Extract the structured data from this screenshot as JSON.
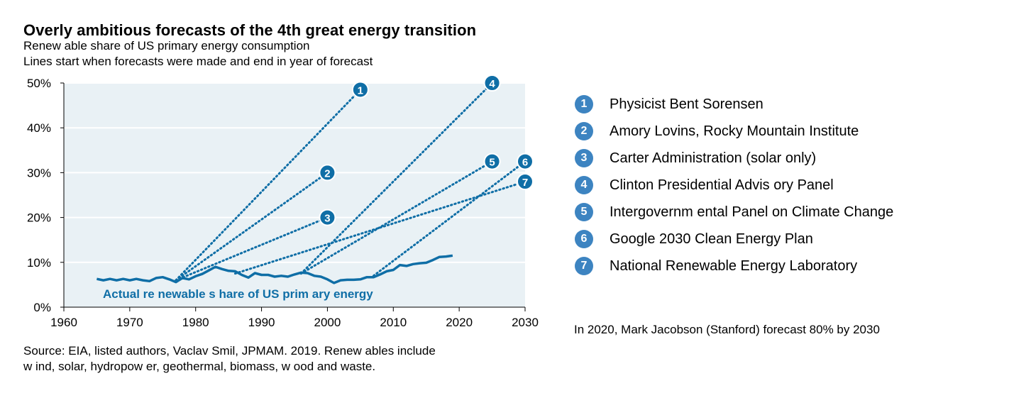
{
  "chart_data": {
    "type": "line",
    "title": "Overly ambitious forecasts  of the 4th  great energy transition",
    "subtitle_lines": [
      "Renew able share of US primary energy consumption",
      "Lines start when forecasts were made and end in year of forecast"
    ],
    "xlim": [
      1960,
      2030
    ],
    "ylim": [
      0,
      50
    ],
    "x_ticks": [
      1960,
      1970,
      1980,
      1990,
      2000,
      2010,
      2020,
      2030
    ],
    "y_ticks": [
      "0%",
      "10%",
      "20%",
      "30%",
      "40%",
      "50%"
    ],
    "y_tick_values": [
      0,
      10,
      20,
      30,
      40,
      50
    ],
    "grid": "horizontal",
    "plot_background": "#e9f1f5",
    "series_color": "#0f6ea6",
    "actual": {
      "label": "Actual re newable s hare of US prim ary energy",
      "x": [
        1965,
        1966,
        1967,
        1968,
        1969,
        1970,
        1971,
        1972,
        1973,
        1974,
        1975,
        1976,
        1977,
        1978,
        1979,
        1980,
        1981,
        1982,
        1983,
        1984,
        1985,
        1986,
        1987,
        1988,
        1989,
        1990,
        1991,
        1992,
        1993,
        1994,
        1995,
        1996,
        1997,
        1998,
        1999,
        2000,
        2001,
        2002,
        2003,
        2004,
        2005,
        2006,
        2007,
        2008,
        2009,
        2010,
        2011,
        2012,
        2013,
        2014,
        2015,
        2016,
        2017,
        2018,
        2019
      ],
      "y": [
        6.3,
        6.0,
        6.3,
        6.0,
        6.3,
        6.0,
        6.3,
        6.0,
        5.8,
        6.5,
        6.7,
        6.2,
        5.6,
        6.5,
        6.2,
        6.9,
        7.4,
        8.2,
        9.0,
        8.5,
        8.1,
        8.0,
        7.2,
        6.6,
        7.6,
        7.2,
        7.2,
        6.8,
        7.0,
        6.8,
        7.3,
        7.7,
        7.6,
        7.0,
        6.8,
        6.2,
        5.4,
        6.0,
        6.1,
        6.1,
        6.2,
        6.7,
        6.7,
        7.3,
        8.0,
        8.3,
        9.4,
        9.2,
        9.6,
        9.8,
        9.9,
        10.5,
        11.2,
        11.3,
        11.5
      ]
    },
    "forecasts": [
      {
        "id": "1",
        "x": [
          1977,
          2005
        ],
        "y": [
          6.0,
          48.5
        ]
      },
      {
        "id": "2",
        "x": [
          1977,
          2000
        ],
        "y": [
          6.0,
          30.0
        ]
      },
      {
        "id": "3",
        "x": [
          1977,
          2000
        ],
        "y": [
          6.0,
          20.0
        ]
      },
      {
        "id": "4",
        "x": [
          1996,
          2025
        ],
        "y": [
          7.5,
          50.0
        ]
      },
      {
        "id": "5",
        "x": [
          1996,
          2025
        ],
        "y": [
          7.5,
          32.5
        ]
      },
      {
        "id": "6",
        "x": [
          2007,
          2030
        ],
        "y": [
          7.0,
          32.5
        ]
      },
      {
        "id": "7",
        "x": [
          1986,
          2030
        ],
        "y": [
          7.5,
          28.0
        ]
      }
    ]
  },
  "legend": [
    {
      "id": "1",
      "label": "Physicist Bent Sorensen"
    },
    {
      "id": "2",
      "label": "Amory Lovins, Rocky Mountain Institute"
    },
    {
      "id": "3",
      "label": "Carter Administration (solar only)"
    },
    {
      "id": "4",
      "label": "Clinton Presidential Advis ory Panel"
    },
    {
      "id": "5",
      "label": "Intergovernm ental Panel on Climate Change"
    },
    {
      "id": "6",
      "label": "Google 2030 Clean Energy Plan"
    },
    {
      "id": "7",
      "label": "National Renewable Energy Laboratory"
    }
  ],
  "badge_color": "#3d84c1",
  "note": "In 2020, Mark Jacobson (Stanford) forecast 80% by 2030",
  "source_lines": [
    "Source: EIA,  listed authors, Vaclav Smil, JPMAM.  2019. Renew ables include",
    "w ind, solar, hydropow er, geothermal, biomass, w ood and waste."
  ]
}
